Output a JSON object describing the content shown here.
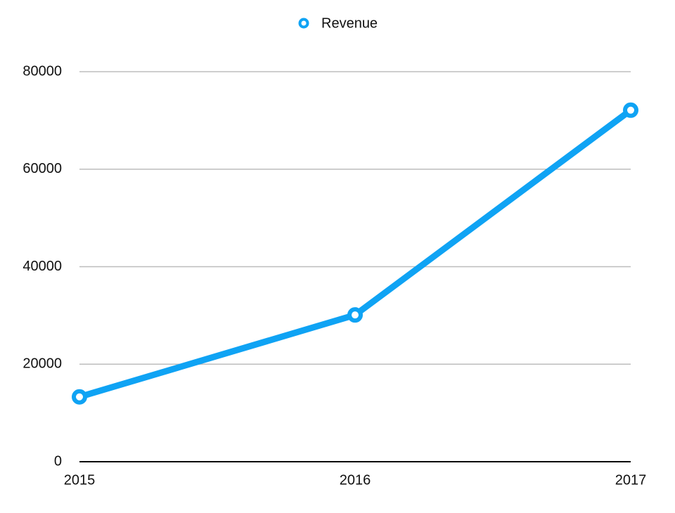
{
  "chart_data": {
    "type": "line",
    "categories": [
      "2015",
      "2016",
      "2017"
    ],
    "series": [
      {
        "name": "Revenue",
        "color": "#0fa3f4",
        "values": [
          13300,
          30100,
          72100
        ]
      }
    ],
    "ylim": [
      0,
      80000
    ],
    "yticks": [
      0,
      20000,
      40000,
      60000,
      80000
    ],
    "grid": true,
    "legend": "top"
  }
}
